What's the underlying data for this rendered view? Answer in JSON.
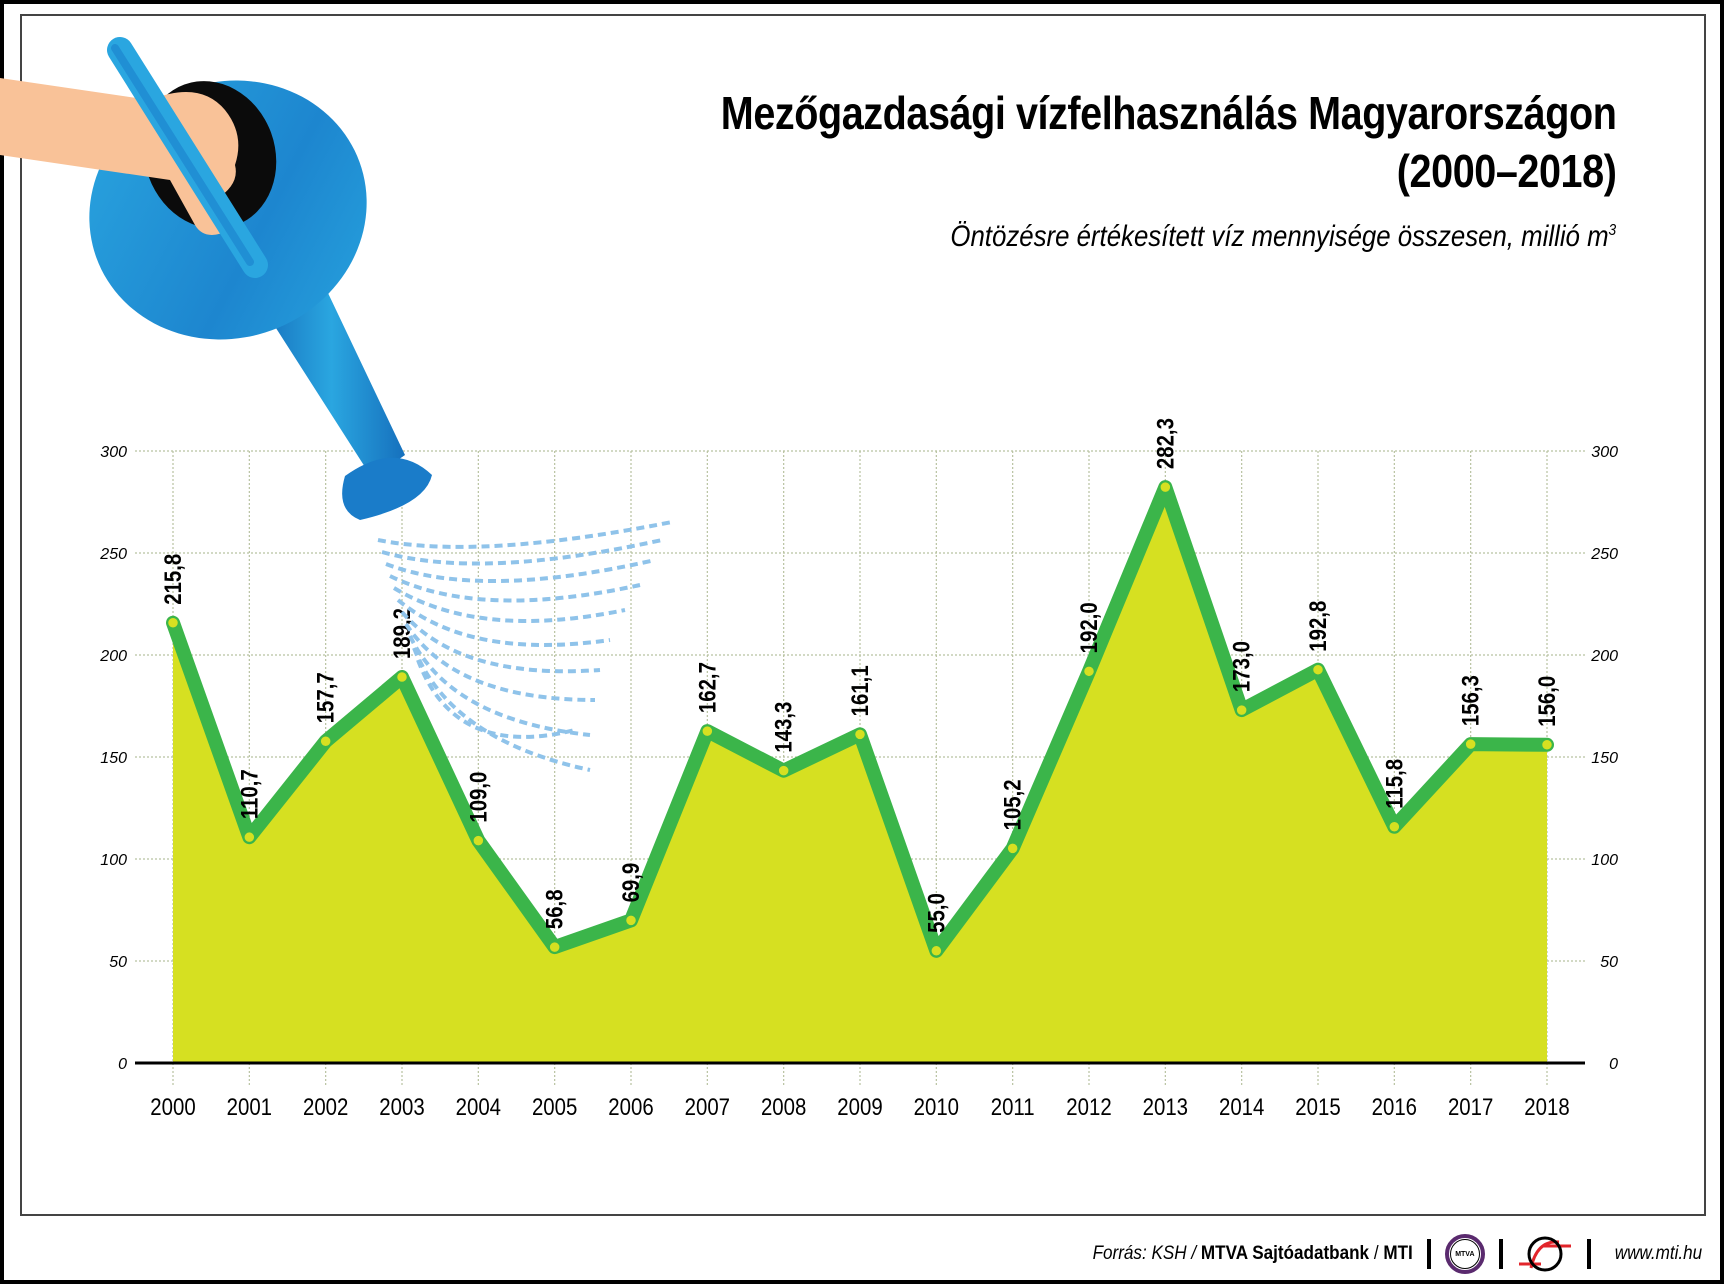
{
  "header": {
    "title_line1": "Mezőgazdasági vízfelhasználás Magyarországon",
    "title_line2": "(2000–2018)",
    "subtitle": "Öntözésre értékesített víz mennyisége összesen, millió m",
    "subtitle_sup": "3"
  },
  "footer": {
    "source_prefix": "Forrás: KSH / ",
    "source_bold1": "MTVA Sajtóadatbank",
    "source_sep": " / ",
    "source_bold2": "MTI",
    "mtva_logo_text": "MTVA",
    "url": "www.mti.hu"
  },
  "colors": {
    "area_fill": "#d6e021",
    "line": "#3bb54a",
    "marker": "#d6e021",
    "grid": "#b8c2a0",
    "spray": "#8fc3ea",
    "can_blue": "#1f8fd6",
    "hand": "#f9c298"
  },
  "chart_data": {
    "type": "area",
    "title": "Mezőgazdasági vízfelhasználás Magyarországon (2000–2018)",
    "subtitle": "Öntözésre értékesített víz mennyisége összesen, millió m³",
    "xlabel": "",
    "ylabel": "millió m³",
    "categories": [
      "2000",
      "2001",
      "2002",
      "2003",
      "2004",
      "2005",
      "2006",
      "2007",
      "2008",
      "2009",
      "2010",
      "2011",
      "2012",
      "2013",
      "2014",
      "2015",
      "2016",
      "2017",
      "2018"
    ],
    "values": [
      215.8,
      110.7,
      157.7,
      189.2,
      109.0,
      56.8,
      69.9,
      162.7,
      143.3,
      161.1,
      55.0,
      105.2,
      192.0,
      282.3,
      173.0,
      192.8,
      115.8,
      156.3,
      156.0
    ],
    "value_labels": [
      "215,8",
      "110,7",
      "157,7",
      "189,2",
      "109,0",
      "56,8",
      "69,9",
      "162,7",
      "143,3",
      "161,1",
      "55,0",
      "105,2",
      "192,0",
      "282,3",
      "173,0",
      "192,8",
      "115,8",
      "156,3",
      "156,0"
    ],
    "yticks": [
      "0",
      "50",
      "100",
      "150",
      "200",
      "250",
      "300"
    ],
    "ylim": [
      0,
      300
    ],
    "grid": true,
    "legend": "none",
    "source": "Forrás: KSH / MTVA Sajtóadatbank / MTI"
  }
}
